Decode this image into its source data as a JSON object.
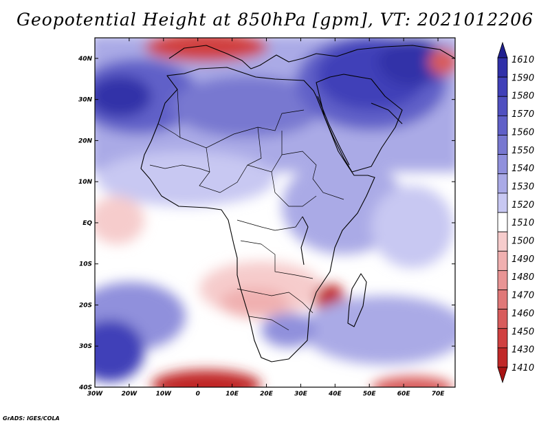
{
  "title": "Geopotential Height at 850hPa [gpm], VT: 2021012206",
  "credit": "GrADS: IGES/COLA",
  "lat_labels": [
    "40N",
    "30N",
    "20N",
    "10N",
    "EQ",
    "10S",
    "20S",
    "30S",
    "40S"
  ],
  "lon_labels": [
    "30W",
    "20W",
    "10W",
    "0",
    "10E",
    "20E",
    "30E",
    "40E",
    "50E",
    "60E",
    "70E"
  ],
  "colorbar": {
    "levels": [
      "1610",
      "1590",
      "1580",
      "1570",
      "1560",
      "1550",
      "1540",
      "1530",
      "1520",
      "1510",
      "1500",
      "1490",
      "1480",
      "1470",
      "1460",
      "1450",
      "1430",
      "1410"
    ],
    "colors": [
      "#202090",
      "#3030a8",
      "#4040b8",
      "#5050c0",
      "#6060c8",
      "#7878d0",
      "#9090dc",
      "#aaaae6",
      "#c8c8f2",
      "#ffffff",
      "#f6cccc",
      "#f0b0b0",
      "#e89494",
      "#e07878",
      "#d85c5c",
      "#d04040",
      "#c02828",
      "#a81414"
    ]
  },
  "chart_data": {
    "type": "heatmap",
    "title": "Geopotential Height at 850hPa [gpm], VT: 2021012206",
    "variable": "Geopotential Height at 850hPa",
    "units": "gpm",
    "valid_time": "2021012206",
    "lon_range": [
      -30,
      75
    ],
    "lat_range": [
      -40,
      45
    ],
    "contour_levels": [
      1410,
      1430,
      1450,
      1460,
      1470,
      1480,
      1490,
      1500,
      1510,
      1520,
      1530,
      1540,
      1550,
      1560,
      1570,
      1580,
      1590,
      1610
    ]
  }
}
